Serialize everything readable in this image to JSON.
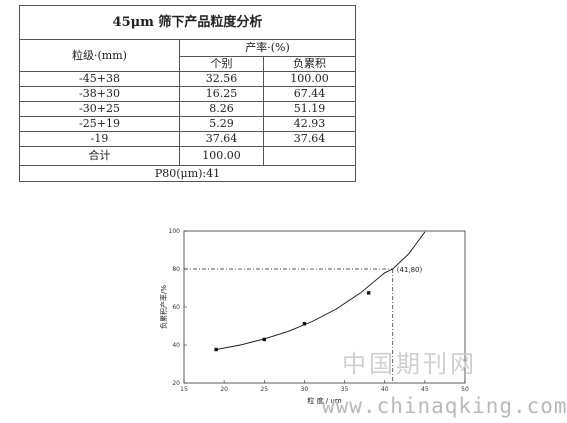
{
  "table": {
    "title": "45μm 筛下产品粒度分析",
    "col_size_header": "粒级·(mm)",
    "col_yield_header": "产率·(%)",
    "col_individual": "个别",
    "col_cumulative": "负累积",
    "rows": [
      {
        "size": "-45+38",
        "individual": "32.56",
        "cumulative": "100.00"
      },
      {
        "size": "-38+30",
        "individual": "16.25",
        "cumulative": "67.44"
      },
      {
        "size": "-30+25",
        "individual": "8.26",
        "cumulative": "51.19"
      },
      {
        "size": "-25+19",
        "individual": "5.29",
        "cumulative": "42.93"
      },
      {
        "size": "-19",
        "individual": "37.64",
        "cumulative": "37.64"
      }
    ],
    "total_label": "合计",
    "total_value": "100.00",
    "p80": "P80(μm):41"
  },
  "chart_data": {
    "type": "line",
    "xlabel": "粒 度 / um",
    "ylabel": "负累积产率/%",
    "xlim": [
      15,
      50
    ],
    "ylim": [
      20,
      100
    ],
    "xticks": [
      15,
      20,
      25,
      30,
      35,
      40,
      45,
      50
    ],
    "yticks": [
      20,
      40,
      60,
      80,
      100
    ],
    "points": [
      {
        "x": 19,
        "y": 37.64
      },
      {
        "x": 25,
        "y": 42.93
      },
      {
        "x": 30,
        "y": 51.19
      },
      {
        "x": 38,
        "y": 67.44
      }
    ],
    "curve": [
      {
        "x": 19,
        "y": 37.6
      },
      {
        "x": 22,
        "y": 40.0
      },
      {
        "x": 25,
        "y": 43.2
      },
      {
        "x": 28,
        "y": 47.2
      },
      {
        "x": 31,
        "y": 52.4
      },
      {
        "x": 34,
        "y": 59.0
      },
      {
        "x": 37,
        "y": 67.5
      },
      {
        "x": 40,
        "y": 78.0
      },
      {
        "x": 41,
        "y": 80.0
      },
      {
        "x": 43,
        "y": 88.0
      },
      {
        "x": 45,
        "y": 99.5
      }
    ],
    "reference": {
      "x": 41,
      "y": 80
    },
    "annotation": "(41,80)",
    "grid": false
  },
  "watermark": {
    "cn": "中国期刊网",
    "url": "www.chinaqking.com"
  }
}
